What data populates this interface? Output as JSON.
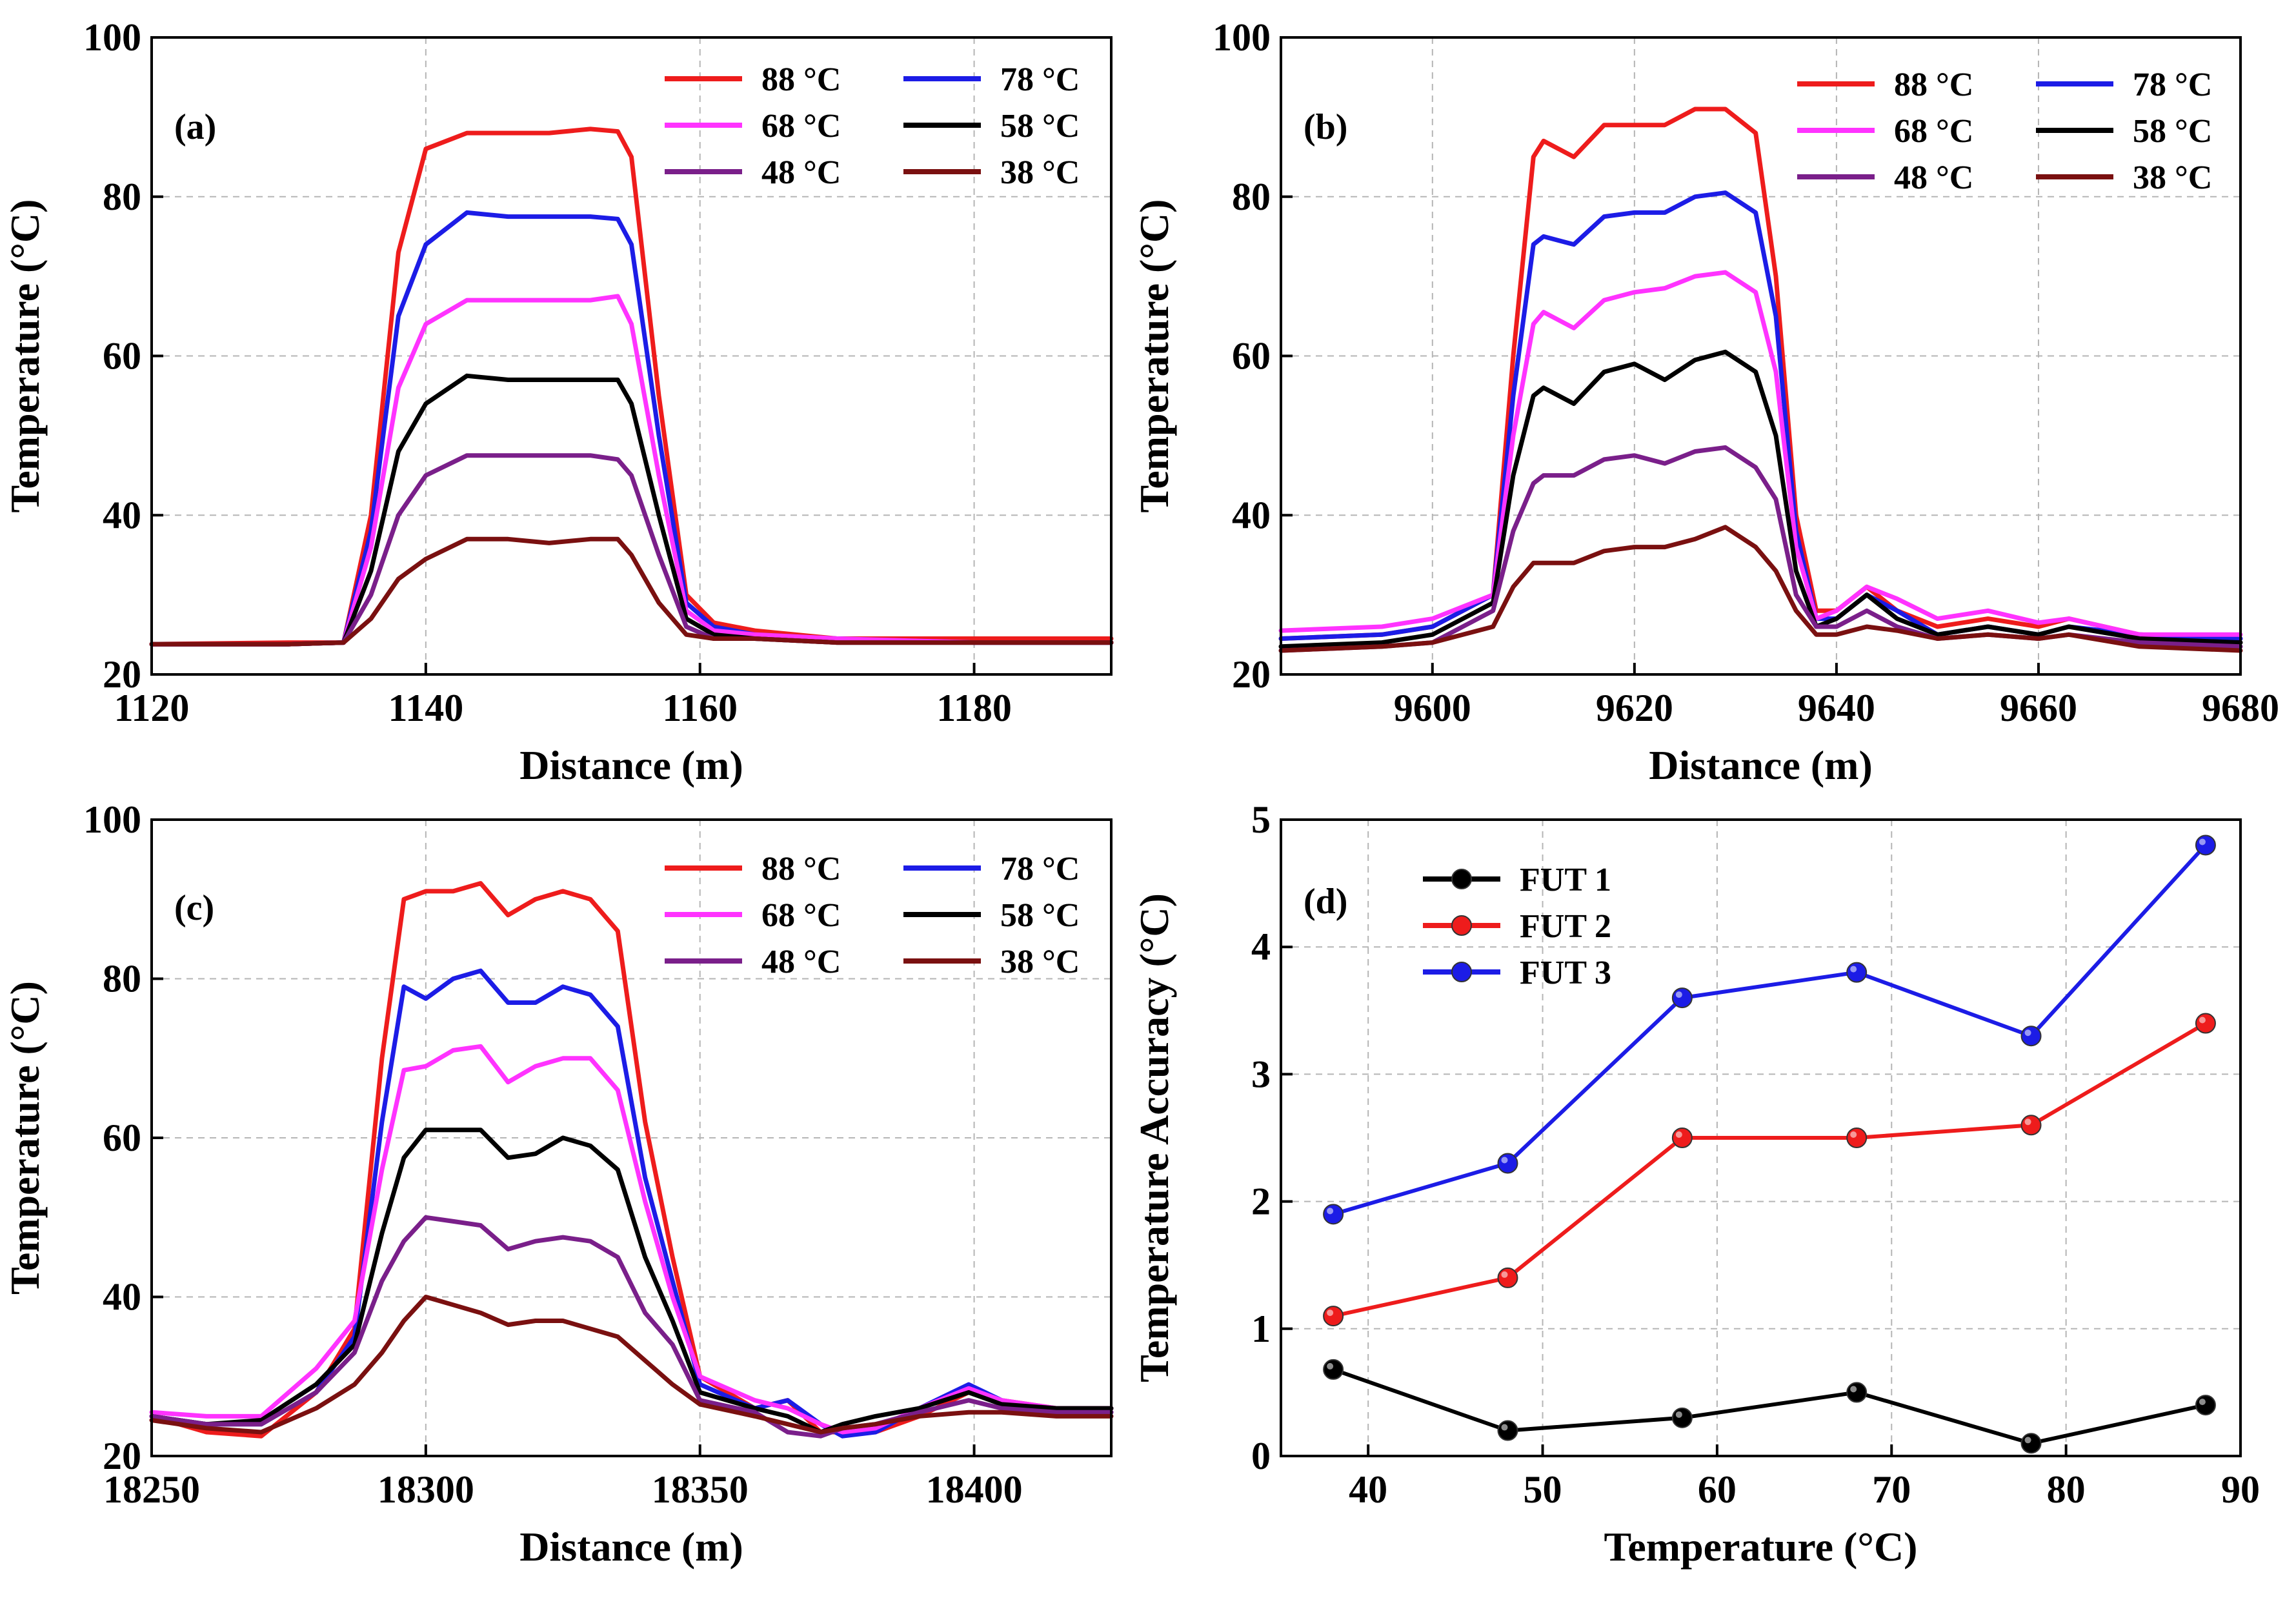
{
  "chart_data": [
    {
      "type": "line",
      "panel_label": "(a)",
      "xlabel": "Distance (m)",
      "ylabel": "Temperature (°C)",
      "xlim": [
        1120,
        1190
      ],
      "ylim": [
        20,
        100
      ],
      "xticks": [
        "1120",
        "1140",
        "1160",
        "1180"
      ],
      "yticks": [
        "20",
        "40",
        "60",
        "80",
        "100"
      ],
      "grid": true,
      "legend_position": "top-right",
      "x": [
        1120,
        1130,
        1134,
        1136,
        1138,
        1140,
        1143,
        1146,
        1149,
        1152,
        1154,
        1155,
        1157,
        1159,
        1161,
        1164,
        1170,
        1180,
        1190
      ],
      "series": [
        {
          "name": "88 °C",
          "color": "#ee1c1c",
          "values": [
            23.8,
            24.0,
            24.0,
            40,
            73,
            86,
            88,
            88,
            88,
            88.5,
            88.2,
            85,
            55,
            30,
            26.5,
            25.5,
            24.5,
            24.5,
            24.5
          ]
        },
        {
          "name": "78 °C",
          "color": "#1c1ce6",
          "values": [
            23.8,
            23.8,
            24.0,
            38,
            65,
            74,
            78,
            77.5,
            77.5,
            77.5,
            77.2,
            74,
            50,
            29,
            26,
            25,
            24.5,
            24,
            24
          ]
        },
        {
          "name": "68 °C",
          "color": "#ff33ff",
          "values": [
            23.8,
            23.8,
            24.0,
            36,
            56,
            64,
            67,
            67,
            67,
            67,
            67.5,
            64,
            45,
            28,
            25.5,
            25,
            24.5,
            24,
            24
          ]
        },
        {
          "name": "58 °C",
          "color": "#000000",
          "values": [
            23.8,
            23.8,
            24.0,
            33,
            48,
            54,
            57.5,
            57,
            57,
            57,
            57,
            54,
            40,
            27,
            25,
            24.5,
            24,
            24,
            24
          ]
        },
        {
          "name": "48 °C",
          "color": "#7a1f8a",
          "values": [
            23.8,
            23.8,
            24.0,
            30,
            40,
            45,
            47.5,
            47.5,
            47.5,
            47.5,
            47,
            45,
            35,
            26,
            24.5,
            24.5,
            24,
            24,
            24
          ]
        },
        {
          "name": "38 °C",
          "color": "#7a1010",
          "values": [
            23.8,
            23.8,
            24.0,
            27,
            32,
            34.5,
            37,
            37,
            36.5,
            37,
            37,
            35,
            29,
            25,
            24.5,
            24.5,
            24,
            24,
            24
          ]
        }
      ]
    },
    {
      "type": "line",
      "panel_label": "(b)",
      "xlabel": "Distance (m)",
      "ylabel": "Temperature (°C)",
      "xlim": [
        9585,
        9680
      ],
      "ylim": [
        20,
        100
      ],
      "xticks": [
        "9600",
        "9620",
        "9640",
        "9660",
        "9680"
      ],
      "yticks": [
        "20",
        "40",
        "60",
        "80",
        "100"
      ],
      "grid": true,
      "legend_position": "top-right",
      "x": [
        9585,
        9595,
        9600,
        9606,
        9608,
        9610,
        9611,
        9614,
        9617,
        9620,
        9623,
        9626,
        9629,
        9632,
        9634,
        9636,
        9638,
        9640,
        9643,
        9646,
        9650,
        9655,
        9660,
        9663,
        9670,
        9680
      ],
      "series": [
        {
          "name": "88 °C",
          "color": "#ee1c1c",
          "values": [
            24.5,
            25,
            26,
            30,
            60,
            85,
            87,
            85,
            89,
            89,
            89,
            91,
            91,
            88,
            70,
            40,
            28,
            28,
            31,
            28,
            26,
            27,
            26,
            27,
            25,
            24.5
          ]
        },
        {
          "name": "78 °C",
          "color": "#1c1ce6",
          "values": [
            24.5,
            25,
            26,
            30,
            55,
            74,
            75,
            74,
            77.5,
            78,
            78,
            80,
            80.5,
            78,
            65,
            38,
            27,
            27,
            30,
            28,
            25,
            26,
            25,
            26,
            25,
            24.5
          ]
        },
        {
          "name": "68 °C",
          "color": "#ff33ff",
          "values": [
            25.5,
            26,
            27,
            30,
            50,
            64,
            65.5,
            63.5,
            67,
            68,
            68.5,
            70,
            70.5,
            68,
            58,
            36,
            27,
            28,
            31,
            29.5,
            27,
            28,
            26.5,
            27,
            25,
            25
          ]
        },
        {
          "name": "58 °C",
          "color": "#000000",
          "values": [
            23.5,
            24,
            25,
            29,
            45,
            55,
            56,
            54,
            58,
            59,
            57,
            59.5,
            60.5,
            58,
            50,
            33,
            26,
            27,
            30,
            27,
            25,
            26,
            25,
            26,
            24.5,
            24
          ]
        },
        {
          "name": "48 °C",
          "color": "#7a1f8a",
          "values": [
            23,
            23.5,
            24,
            28,
            38,
            44,
            45,
            45,
            47,
            47.5,
            46.5,
            48,
            48.5,
            46,
            42,
            30,
            26,
            26,
            28,
            26,
            24.5,
            25,
            24.5,
            25,
            24,
            23.5
          ]
        },
        {
          "name": "38 °C",
          "color": "#7a1010",
          "values": [
            23,
            23.5,
            24,
            26,
            31,
            34,
            34,
            34,
            35.5,
            36,
            36,
            37,
            38.5,
            36,
            33,
            28,
            25,
            25,
            26,
            25.5,
            24.5,
            25,
            24.5,
            25,
            23.5,
            23
          ]
        }
      ]
    },
    {
      "type": "line",
      "panel_label": "(c)",
      "xlabel": "Distance (m)",
      "ylabel": "Temperature (°C)",
      "xlim": [
        18250,
        18425
      ],
      "ylim": [
        20,
        100
      ],
      "xticks": [
        "18250",
        "18300",
        "18350",
        "18400"
      ],
      "yticks": [
        "20",
        "40",
        "60",
        "80",
        "100"
      ],
      "grid": true,
      "legend_position": "top-right",
      "x": [
        18250,
        18260,
        18270,
        18280,
        18287,
        18292,
        18296,
        18300,
        18305,
        18310,
        18315,
        18320,
        18325,
        18330,
        18335,
        18340,
        18345,
        18350,
        18360,
        18366,
        18372,
        18376,
        18382,
        18390,
        18399,
        18405,
        18415,
        18425
      ],
      "series": [
        {
          "name": "88 °C",
          "color": "#ee1c1c",
          "values": [
            25,
            23,
            22.5,
            28,
            36,
            70,
            90,
            91,
            91,
            92,
            88,
            90,
            91,
            90,
            86,
            62,
            45,
            30,
            26,
            27,
            23,
            23,
            23,
            25,
            28,
            27,
            26,
            26
          ]
        },
        {
          "name": "78 °C",
          "color": "#1c1ce6",
          "values": [
            25,
            24,
            24,
            28,
            35,
            62,
            79,
            77.5,
            80,
            81,
            77,
            77,
            79,
            78,
            74,
            55,
            42,
            29,
            26,
            27,
            24,
            22.5,
            23,
            26,
            29,
            27,
            25.5,
            25.5
          ]
        },
        {
          "name": "68 °C",
          "color": "#ff33ff",
          "values": [
            25.5,
            25,
            25,
            31,
            37,
            56,
            68.5,
            69,
            71,
            71.5,
            67,
            69,
            70,
            70,
            66,
            52,
            40,
            30,
            27,
            26,
            24,
            23,
            23.5,
            26,
            28.5,
            27,
            26,
            26
          ]
        },
        {
          "name": "58 °C",
          "color": "#000000",
          "values": [
            25,
            24,
            24.5,
            29,
            34,
            48,
            57.5,
            61,
            61,
            61,
            57.5,
            58,
            60,
            59,
            56,
            45,
            37,
            28,
            26,
            25,
            23,
            24,
            25,
            26,
            28,
            26.5,
            26,
            26
          ]
        },
        {
          "name": "48 °C",
          "color": "#7a1f8a",
          "values": [
            25,
            24,
            24,
            28,
            33,
            42,
            47,
            50,
            49.5,
            49,
            46,
            47,
            47.5,
            47,
            45,
            38,
            34,
            27,
            25.5,
            23,
            22.5,
            23.5,
            24,
            25.5,
            27,
            26,
            25.5,
            25.5
          ]
        },
        {
          "name": "38 °C",
          "color": "#7a1010",
          "values": [
            24.5,
            23.5,
            23,
            26,
            29,
            33,
            37,
            40,
            39,
            38,
            36.5,
            37,
            37,
            36,
            35,
            32,
            29,
            26.5,
            25,
            24,
            23,
            23.5,
            24,
            25,
            25.5,
            25.5,
            25,
            25
          ]
        }
      ]
    },
    {
      "type": "line",
      "panel_label": "(d)",
      "xlabel": "Temperature (°C)",
      "ylabel": "Temperature Accuracy (°C)",
      "xlim": [
        35,
        90
      ],
      "ylim": [
        0,
        5
      ],
      "xticks": [
        "40",
        "50",
        "60",
        "70",
        "80",
        "90"
      ],
      "yticks": [
        "0",
        "1",
        "2",
        "3",
        "4",
        "5"
      ],
      "grid": true,
      "legend_position": "top-left",
      "x": [
        38,
        48,
        58,
        68,
        78,
        88
      ],
      "series": [
        {
          "name": "FUT 1",
          "color": "#000000",
          "values": [
            0.68,
            0.2,
            0.3,
            0.5,
            0.1,
            0.4
          ]
        },
        {
          "name": "FUT 2",
          "color": "#ee1c1c",
          "values": [
            1.1,
            1.4,
            2.5,
            2.5,
            2.6,
            3.4
          ]
        },
        {
          "name": "FUT 3",
          "color": "#1c1ce6",
          "values": [
            1.9,
            2.3,
            3.6,
            3.8,
            3.3,
            4.8
          ]
        }
      ]
    }
  ]
}
